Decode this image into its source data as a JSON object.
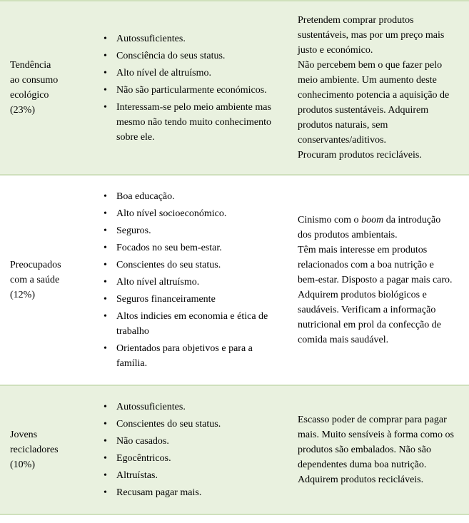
{
  "rows": [
    {
      "tint": true,
      "label": "Tendência\nao consumo\necológico\n(23%)",
      "bullets": [
        "Autossuficientes.",
        "Consciência do seus status.",
        "Alto nível de altruísmo.",
        "Não são particularmente económicos.",
        "Interessam-se pelo meio ambiente mas mesmo não tendo muito conhecimento sobre ele."
      ],
      "desc": "Pretendem comprar produtos sustentáveis, mas por um preço mais justo e económico.\nNão percebem bem o que fazer pelo meio ambiente. Um aumento deste conhecimento potencia a aquisição de produtos sustentáveis. Adquirem produtos naturais, sem conservantes/aditivos.\nProcuram produtos recicláveis."
    },
    {
      "tint": false,
      "label": "Preocupados\ncom a saúde\n(12%)",
      "bullets": [
        "Boa educação.",
        "Alto nível socioeconómico.",
        "Seguros.",
        "Focados no seu bem-estar.",
        "Conscientes do seu status.",
        "Alto nível altruísmo.",
        "Seguros financeiramente",
        "Altos indicies em economia e ética de trabalho",
        "Orientados para objetivos e para a família."
      ],
      "desc_html": "Cinismo com o <em class=\"ital\">boom</em> da introdução dos produtos ambientais.\nTêm mais interesse em produtos relacionados com a boa nutrição e bem-estar. Disposto a pagar mais caro. Adquirem produtos biológicos e saudáveis. Verificam a informação nutricional em prol da confecção de comida mais saudável."
    },
    {
      "tint": true,
      "label": "Jovens\nrecicladores\n(10%)",
      "bullets": [
        "Autossuficientes.",
        "Conscientes do seu status.",
        "Não casados.",
        "Egocêntricos.",
        "Altruístas.",
        "Recusam pagar mais."
      ],
      "desc": "Escasso poder de comprar para pagar mais. Muito sensíveis à forma como os produtos são embalados. Não são dependentes duma boa nutrição. Adquirem produtos recicláveis."
    }
  ],
  "colors": {
    "tint_bg": "#e9f1df",
    "sep": "#cfe0bc",
    "text": "#000000",
    "page_bg": "#ffffff"
  }
}
